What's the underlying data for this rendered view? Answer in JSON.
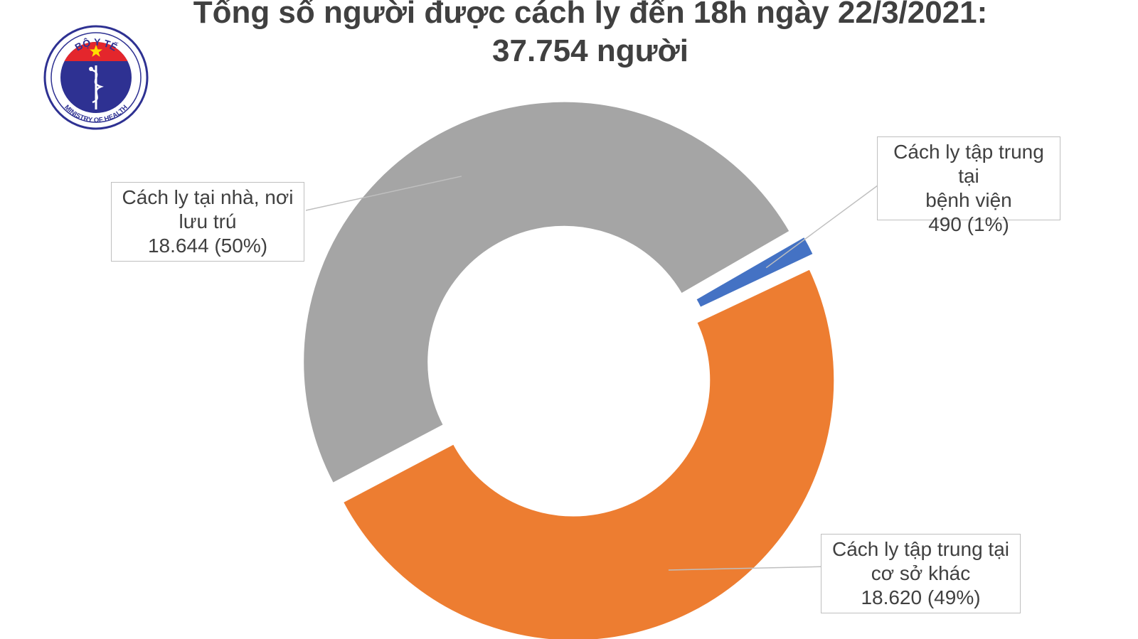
{
  "title": {
    "line1": "Tổng số người được cách ly đến 18h ngày 22/3/2021:",
    "line2": "37.754 người"
  },
  "logo": {
    "top_text": "BỘ Y TẾ",
    "bottom_text": "MINISTRY OF HEALTH",
    "colors": {
      "ring": "#2e3192",
      "red": "#e4262c",
      "star": "#ffde00"
    },
    "icon": "caduceus-icon"
  },
  "chart_data": {
    "type": "pie",
    "donut": true,
    "start_angle_deg": 60,
    "slices": [
      {
        "label_lines": [
          "Cách ly tập trung tại",
          "bệnh viện"
        ],
        "value": 490,
        "value_text": "490 (1%)",
        "percent": 1,
        "color": "#4472c4"
      },
      {
        "label_lines": [
          "Cách ly tập trung tại",
          "cơ sở khác"
        ],
        "value": 18620,
        "value_text": "18.620 (49%)",
        "percent": 49,
        "color": "#ed7d31"
      },
      {
        "label_lines": [
          "Cách ly tại nhà, nơi",
          "lưu trú"
        ],
        "value": 18644,
        "value_text": "18.644 (50%)",
        "percent": 50,
        "color": "#a5a5a5"
      }
    ]
  }
}
